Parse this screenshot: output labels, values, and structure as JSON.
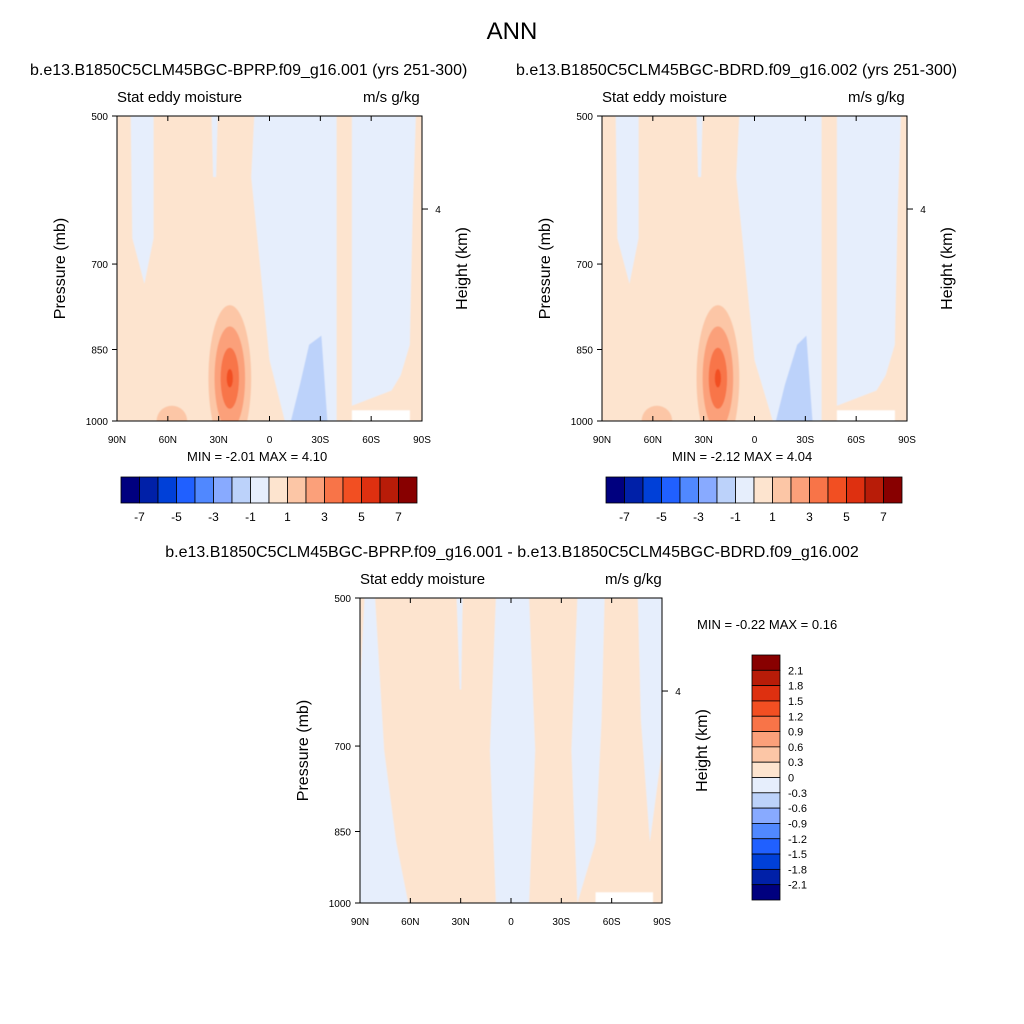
{
  "page_title": "ANN",
  "panels": [
    {
      "id": "p1",
      "title": "b.e13.B1850C5CLM45BGC-BPRP.f09_g16.001 (yrs 251-300)",
      "left_label": "Stat eddy moisture",
      "right_label": "m/s g/kg",
      "ylabel": "Pressure (mb)",
      "y2label": "Height (km)",
      "minmax": "MIN =  -2.01  MAX =   4.10"
    },
    {
      "id": "p2",
      "title": "b.e13.B1850C5CLM45BGC-BDRD.f09_g16.002 (yrs 251-300)",
      "left_label": "Stat eddy moisture",
      "right_label": "m/s g/kg",
      "ylabel": "Pressure (mb)",
      "y2label": "Height (km)",
      "minmax": "MIN =  -2.12  MAX =   4.04"
    },
    {
      "id": "p3",
      "title": "b.e13.B1850C5CLM45BGC-BPRP.f09_g16.001 - b.e13.B1850C5CLM45BGC-BDRD.f09_g16.002",
      "left_label": "Stat eddy moisture",
      "right_label": "m/s g/kg",
      "ylabel": "Pressure (mb)",
      "y2label": "Height (km)",
      "minmax": "MIN =  -0.22  MAX =   0.16"
    }
  ],
  "axes": {
    "x_ticks": [
      "90N",
      "60N",
      "30N",
      "0",
      "30S",
      "60S",
      "90S"
    ],
    "y_ticks": [
      "500",
      "700",
      "850",
      "1000"
    ],
    "y2_ticks": [
      "4"
    ]
  },
  "colorbars": {
    "top": {
      "labels": [
        "-7",
        "-5",
        "-3",
        "-1",
        "1",
        "3",
        "5",
        "7"
      ],
      "colors": [
        "#00007f",
        "#0020a8",
        "#0040d8",
        "#2060ff",
        "#5088ff",
        "#88aaff",
        "#bcd2fa",
        "#e6eefc",
        "#fde4cf",
        "#fcc6a6",
        "#fba07a",
        "#f87448",
        "#f24f22",
        "#de3010",
        "#b81c08",
        "#880000"
      ]
    },
    "diff": {
      "labels": [
        "2.1",
        "1.8",
        "1.5",
        "1.2",
        "0.9",
        "0.6",
        "0.3",
        "0",
        "-0.3",
        "-0.6",
        "-0.9",
        "-1.2",
        "-1.5",
        "-1.8",
        "-2.1"
      ],
      "colors": [
        "#880000",
        "#b81c08",
        "#de3010",
        "#f24f22",
        "#f87448",
        "#fba07a",
        "#fcc6a6",
        "#fde4cf",
        "#e6eefc",
        "#bcd2fa",
        "#88aaff",
        "#5088ff",
        "#2060ff",
        "#0040d8",
        "#0020a8",
        "#00007f"
      ]
    }
  },
  "chart_data": [
    {
      "type": "heatmap",
      "title": "b.e13.B1850C5CLM45BGC-BPRP.f09_g16.001 (yrs 251-300)",
      "variable": "Stat eddy moisture",
      "units": "m/s g/kg",
      "xlabel": "",
      "ylabel": "Pressure (mb)",
      "y2label": "Height (km)",
      "x_range": [
        90,
        -90
      ],
      "y_range": [
        1000,
        500
      ],
      "y_scale": "log",
      "min": -2.01,
      "max": 4.1,
      "levels": [
        -7,
        -6,
        -5,
        -4,
        -3,
        -2,
        -1,
        0,
        1,
        2,
        3,
        4,
        5,
        6,
        7
      ],
      "features": [
        {
          "lat": 25,
          "p": 930,
          "value": 4.1,
          "note": "max"
        },
        {
          "lat": 5,
          "p": 950,
          "value": -1.0
        },
        {
          "lat": -25,
          "p": 920,
          "value": -1.5
        },
        {
          "lat": 45,
          "p": 650,
          "value": 0.4
        },
        {
          "lat": -45,
          "p": 700,
          "value": -0.3
        }
      ]
    },
    {
      "type": "heatmap",
      "title": "b.e13.B1850C5CLM45BGC-BDRD.f09_g16.002 (yrs 251-300)",
      "variable": "Stat eddy moisture",
      "units": "m/s g/kg",
      "xlabel": "",
      "ylabel": "Pressure (mb)",
      "y2label": "Height (km)",
      "x_range": [
        90,
        -90
      ],
      "y_range": [
        1000,
        500
      ],
      "y_scale": "log",
      "min": -2.12,
      "max": 4.04,
      "levels": [
        -7,
        -6,
        -5,
        -4,
        -3,
        -2,
        -1,
        0,
        1,
        2,
        3,
        4,
        5,
        6,
        7
      ],
      "features": [
        {
          "lat": 25,
          "p": 925,
          "value": 4.04,
          "note": "max"
        },
        {
          "lat": 5,
          "p": 950,
          "value": -1.0
        },
        {
          "lat": -25,
          "p": 910,
          "value": -1.5
        },
        {
          "lat": 45,
          "p": 650,
          "value": 0.4
        },
        {
          "lat": -45,
          "p": 700,
          "value": -0.3
        }
      ]
    },
    {
      "type": "heatmap",
      "title": "b.e13.B1850C5CLM45BGC-BPRP.f09_g16.001 - b.e13.B1850C5CLM45BGC-BDRD.f09_g16.002",
      "variable": "Stat eddy moisture",
      "units": "m/s g/kg",
      "xlabel": "",
      "ylabel": "Pressure (mb)",
      "y2label": "Height (km)",
      "x_range": [
        90,
        -90
      ],
      "y_range": [
        1000,
        500
      ],
      "y_scale": "log",
      "min": -0.22,
      "max": 0.16,
      "levels": [
        -2.1,
        -1.8,
        -1.5,
        -1.2,
        -0.9,
        -0.6,
        -0.3,
        0,
        0.3,
        0.6,
        0.9,
        1.2,
        1.5,
        1.8,
        2.1
      ],
      "features": [
        {
          "lat": 50,
          "p": 750,
          "value": 0.1
        },
        {
          "lat": 10,
          "p": 750,
          "value": -0.15
        },
        {
          "lat": -30,
          "p": 750,
          "value": 0.1
        },
        {
          "lat": -50,
          "p": 750,
          "value": -0.15
        }
      ]
    }
  ]
}
